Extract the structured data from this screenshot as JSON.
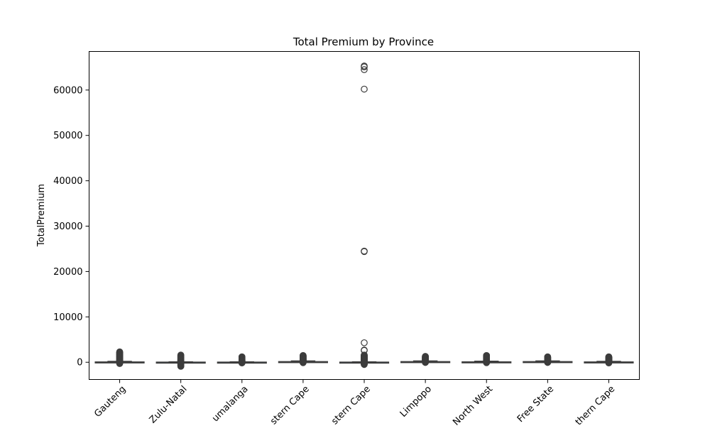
{
  "chart_data": {
    "type": "box",
    "title": "Total Premium by Province",
    "xlabel": "",
    "ylabel": "TotalPremium",
    "ylim": [
      -3800,
      68500
    ],
    "yticks": [
      0,
      10000,
      20000,
      30000,
      40000,
      50000,
      60000
    ],
    "grid": false,
    "categories": [
      "Gauteng",
      "KwaZulu-Natal",
      "Mpumalanga",
      "Western Cape",
      "Eastern Cape",
      "Limpopo",
      "North West",
      "Free State",
      "Northern Cape"
    ],
    "category_labels_visible": [
      "Gauteng",
      "Zulu-Natal",
      "umalanga",
      "stern Cape",
      "stern Cape",
      "Limpopo",
      "North West",
      "Free State",
      "thern Cape"
    ],
    "boxes": [
      {
        "q1": 0,
        "median": 0,
        "q3": 80,
        "whisker_low": -50,
        "whisker_high": 200,
        "outlier_range": [
          -300,
          2300
        ]
      },
      {
        "q1": -10,
        "median": 0,
        "q3": 40,
        "whisker_low": -100,
        "whisker_high": 100,
        "outlier_range": [
          -900,
          1600
        ]
      },
      {
        "q1": 0,
        "median": 0,
        "q3": 40,
        "whisker_low": -50,
        "whisker_high": 100,
        "outlier_range": [
          -150,
          1200
        ]
      },
      {
        "q1": 0,
        "median": 40,
        "q3": 150,
        "whisker_low": -40,
        "whisker_high": 300,
        "outlier_range": [
          -100,
          1500
        ]
      },
      {
        "q1": 0,
        "median": 0,
        "q3": 40,
        "whisker_low": -50,
        "whisker_high": 100,
        "outlier_range": [
          -500,
          1600
        ],
        "extra_outliers": [
          2600,
          2700,
          4300,
          24400,
          24500,
          60200,
          64500,
          65100,
          65300
        ]
      },
      {
        "q1": 0,
        "median": 40,
        "q3": 150,
        "whisker_low": -40,
        "whisker_high": 300,
        "outlier_range": [
          -50,
          1300
        ]
      },
      {
        "q1": 0,
        "median": 0,
        "q3": 100,
        "whisker_low": -40,
        "whisker_high": 250,
        "outlier_range": [
          -100,
          1500
        ]
      },
      {
        "q1": 0,
        "median": 40,
        "q3": 150,
        "whisker_low": -40,
        "whisker_high": 300,
        "outlier_range": [
          -50,
          1200
        ]
      },
      {
        "q1": 0,
        "median": 0,
        "q3": 80,
        "whisker_low": -40,
        "whisker_high": 200,
        "outlier_range": [
          -150,
          1200
        ]
      }
    ],
    "box_color": "#3b75af",
    "edge_color": "#3d3d3d"
  }
}
